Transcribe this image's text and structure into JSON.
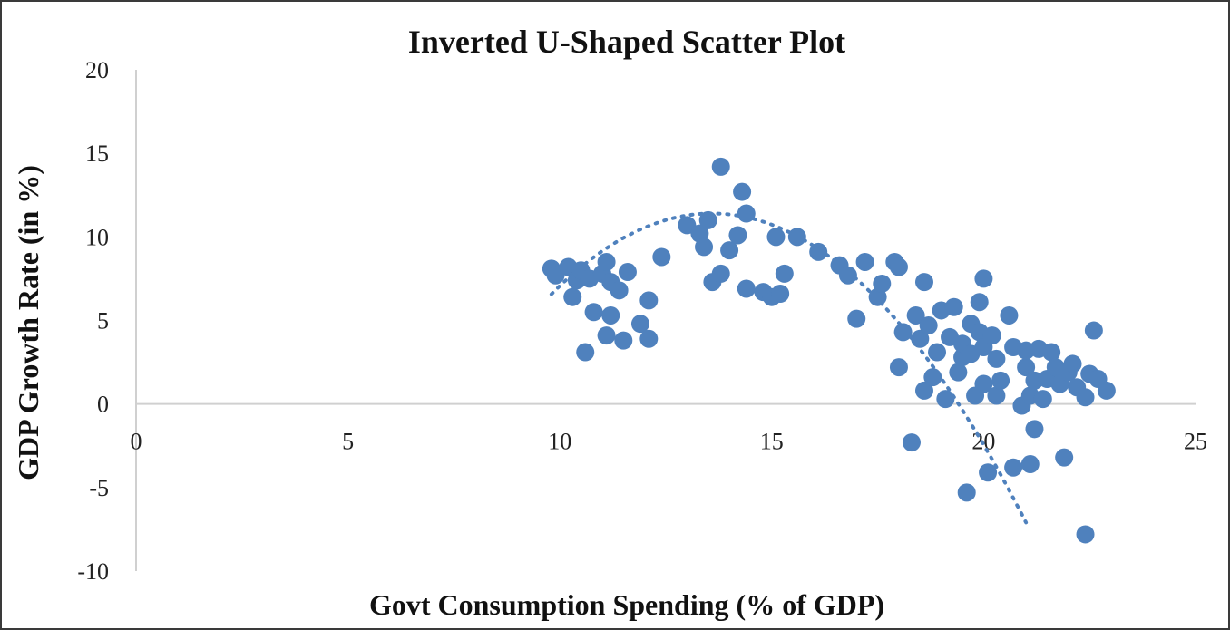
{
  "chart_data": {
    "type": "scatter",
    "title": "Inverted U-Shaped Scatter Plot",
    "xlabel": "Govt Consumption Spending (% of GDP)",
    "ylabel": "GDP Growth Rate (in %)",
    "xlim": [
      0,
      25
    ],
    "ylim": [
      -10,
      20
    ],
    "xticks": [
      "0",
      "5",
      "10",
      "15",
      "20",
      "25"
    ],
    "yticks": [
      "20",
      "15",
      "10",
      "5",
      "0",
      "-5",
      "-10"
    ],
    "grid": false,
    "legend": "none",
    "colors": {
      "points": "#4f81bd",
      "trendline": "#4f81bd",
      "axis": "#d0d0d0"
    },
    "trendline": {
      "type": "polynomial-2",
      "coefficients": [
        -50.76,
        9.15,
        -0.3367
      ],
      "x_range": [
        9.8,
        21
      ]
    },
    "points": [
      {
        "x": 9.8,
        "y": 8.1
      },
      {
        "x": 9.9,
        "y": 7.7
      },
      {
        "x": 10.2,
        "y": 8.2
      },
      {
        "x": 10.3,
        "y": 6.4
      },
      {
        "x": 10.4,
        "y": 7.4
      },
      {
        "x": 10.5,
        "y": 8.0
      },
      {
        "x": 10.6,
        "y": 3.1
      },
      {
        "x": 10.7,
        "y": 7.5
      },
      {
        "x": 10.8,
        "y": 5.5
      },
      {
        "x": 11.0,
        "y": 7.8
      },
      {
        "x": 11.1,
        "y": 8.5
      },
      {
        "x": 11.1,
        "y": 4.1
      },
      {
        "x": 11.2,
        "y": 5.3
      },
      {
        "x": 11.2,
        "y": 7.3
      },
      {
        "x": 11.4,
        "y": 6.8
      },
      {
        "x": 11.5,
        "y": 3.8
      },
      {
        "x": 11.6,
        "y": 7.9
      },
      {
        "x": 11.9,
        "y": 4.8
      },
      {
        "x": 12.1,
        "y": 6.2
      },
      {
        "x": 12.1,
        "y": 3.9
      },
      {
        "x": 12.4,
        "y": 8.8
      },
      {
        "x": 13.0,
        "y": 10.7
      },
      {
        "x": 13.3,
        "y": 10.2
      },
      {
        "x": 13.4,
        "y": 9.4
      },
      {
        "x": 13.5,
        "y": 11.0
      },
      {
        "x": 13.6,
        "y": 7.3
      },
      {
        "x": 13.8,
        "y": 14.2
      },
      {
        "x": 13.8,
        "y": 7.8
      },
      {
        "x": 14.0,
        "y": 9.2
      },
      {
        "x": 14.2,
        "y": 10.1
      },
      {
        "x": 14.3,
        "y": 12.7
      },
      {
        "x": 14.4,
        "y": 11.4
      },
      {
        "x": 14.4,
        "y": 6.9
      },
      {
        "x": 14.8,
        "y": 6.7
      },
      {
        "x": 15.0,
        "y": 6.4
      },
      {
        "x": 15.1,
        "y": 10.0
      },
      {
        "x": 15.2,
        "y": 6.6
      },
      {
        "x": 15.3,
        "y": 7.8
      },
      {
        "x": 15.6,
        "y": 10.0
      },
      {
        "x": 16.1,
        "y": 9.1
      },
      {
        "x": 16.6,
        "y": 8.3
      },
      {
        "x": 16.8,
        "y": 7.7
      },
      {
        "x": 17.0,
        "y": 5.1
      },
      {
        "x": 17.2,
        "y": 8.5
      },
      {
        "x": 17.5,
        "y": 6.4
      },
      {
        "x": 17.6,
        "y": 7.2
      },
      {
        "x": 17.9,
        "y": 8.5
      },
      {
        "x": 18.0,
        "y": 8.2
      },
      {
        "x": 18.0,
        "y": 2.2
      },
      {
        "x": 18.1,
        "y": 4.3
      },
      {
        "x": 18.3,
        "y": -2.3
      },
      {
        "x": 18.4,
        "y": 5.3
      },
      {
        "x": 18.5,
        "y": 3.9
      },
      {
        "x": 18.6,
        "y": 7.3
      },
      {
        "x": 18.6,
        "y": 0.8
      },
      {
        "x": 18.7,
        "y": 4.7
      },
      {
        "x": 18.8,
        "y": 1.6
      },
      {
        "x": 18.9,
        "y": 3.1
      },
      {
        "x": 19.0,
        "y": 5.6
      },
      {
        "x": 19.1,
        "y": 0.3
      },
      {
        "x": 19.2,
        "y": 4.0
      },
      {
        "x": 19.3,
        "y": 5.8
      },
      {
        "x": 19.4,
        "y": 1.9
      },
      {
        "x": 19.5,
        "y": 2.8
      },
      {
        "x": 19.5,
        "y": 3.6
      },
      {
        "x": 19.6,
        "y": -5.3
      },
      {
        "x": 19.7,
        "y": 4.8
      },
      {
        "x": 19.7,
        "y": 3.0
      },
      {
        "x": 19.8,
        "y": 0.5
      },
      {
        "x": 19.9,
        "y": 6.1
      },
      {
        "x": 19.9,
        "y": 4.3
      },
      {
        "x": 20.0,
        "y": 7.5
      },
      {
        "x": 20.0,
        "y": 3.4
      },
      {
        "x": 20.0,
        "y": 1.2
      },
      {
        "x": 20.1,
        "y": -4.1
      },
      {
        "x": 20.2,
        "y": 4.1
      },
      {
        "x": 20.3,
        "y": 2.7
      },
      {
        "x": 20.3,
        "y": 0.5
      },
      {
        "x": 20.4,
        "y": 1.4
      },
      {
        "x": 20.6,
        "y": 5.3
      },
      {
        "x": 20.7,
        "y": -3.8
      },
      {
        "x": 20.7,
        "y": 3.4
      },
      {
        "x": 20.9,
        "y": -0.1
      },
      {
        "x": 21.0,
        "y": 2.2
      },
      {
        "x": 21.0,
        "y": 3.2
      },
      {
        "x": 21.1,
        "y": 0.5
      },
      {
        "x": 21.1,
        "y": -3.6
      },
      {
        "x": 21.2,
        "y": 1.4
      },
      {
        "x": 21.2,
        "y": -1.5
      },
      {
        "x": 21.3,
        "y": 3.3
      },
      {
        "x": 21.4,
        "y": 0.3
      },
      {
        "x": 21.5,
        "y": 1.5
      },
      {
        "x": 21.6,
        "y": 3.1
      },
      {
        "x": 21.7,
        "y": 2.2
      },
      {
        "x": 21.8,
        "y": 1.2
      },
      {
        "x": 21.9,
        "y": -3.2
      },
      {
        "x": 22.0,
        "y": 1.9
      },
      {
        "x": 22.1,
        "y": 2.4
      },
      {
        "x": 22.2,
        "y": 1.0
      },
      {
        "x": 22.4,
        "y": 0.4
      },
      {
        "x": 22.5,
        "y": 1.8
      },
      {
        "x": 22.4,
        "y": -7.8
      },
      {
        "x": 22.6,
        "y": 4.4
      },
      {
        "x": 22.7,
        "y": 1.5
      },
      {
        "x": 22.9,
        "y": 0.8
      }
    ]
  }
}
